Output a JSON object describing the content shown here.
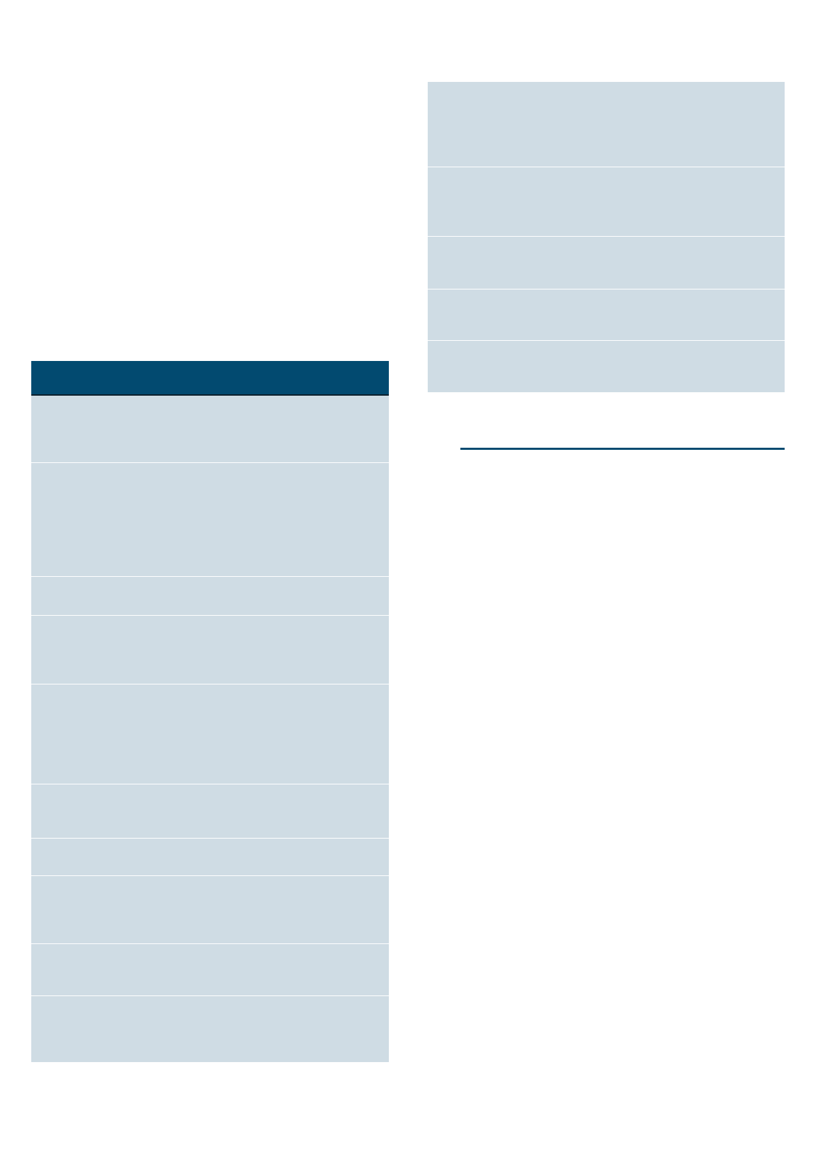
{
  "colors": {
    "header_fill": "#024a70",
    "row_fill": "#cfdce4",
    "rule": "#024a70",
    "background": "#ffffff"
  },
  "left_table": {
    "header_cells": [],
    "row_count": 10
  },
  "right_table": {
    "row_count": 5
  }
}
